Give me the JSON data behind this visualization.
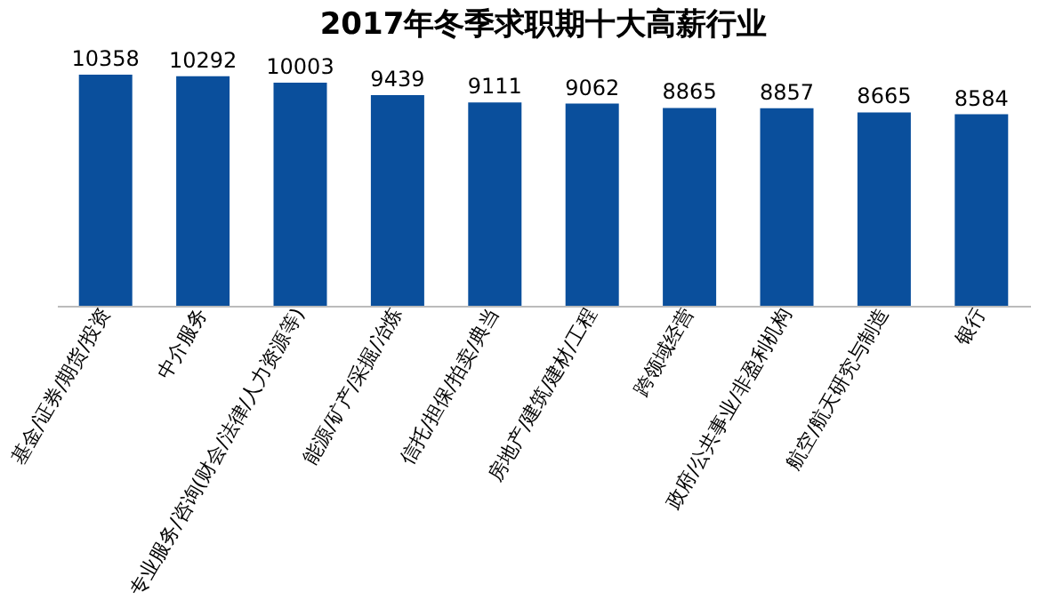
{
  "chart_data": {
    "type": "bar",
    "title": "2017年冬季求职期十大高薪行业",
    "categories": [
      "基金/证券/期货/投资",
      "中介服务",
      "专业服务/咨询(财会/法律/人力资源等)",
      "能源/矿产/采掘/冶炼",
      "信托/担保/拍卖/典当",
      "房地产/建筑/建材/工程",
      "跨领域经营",
      "政府/公共事业/非盈利机构",
      "航空/航天研究与制造",
      "银行"
    ],
    "values": [
      10358,
      10292,
      10003,
      9439,
      9111,
      9062,
      8865,
      8857,
      8665,
      8584
    ],
    "color": "#0a4f9c",
    "data_labels": true,
    "grid": false,
    "tick_labels": "x"
  }
}
